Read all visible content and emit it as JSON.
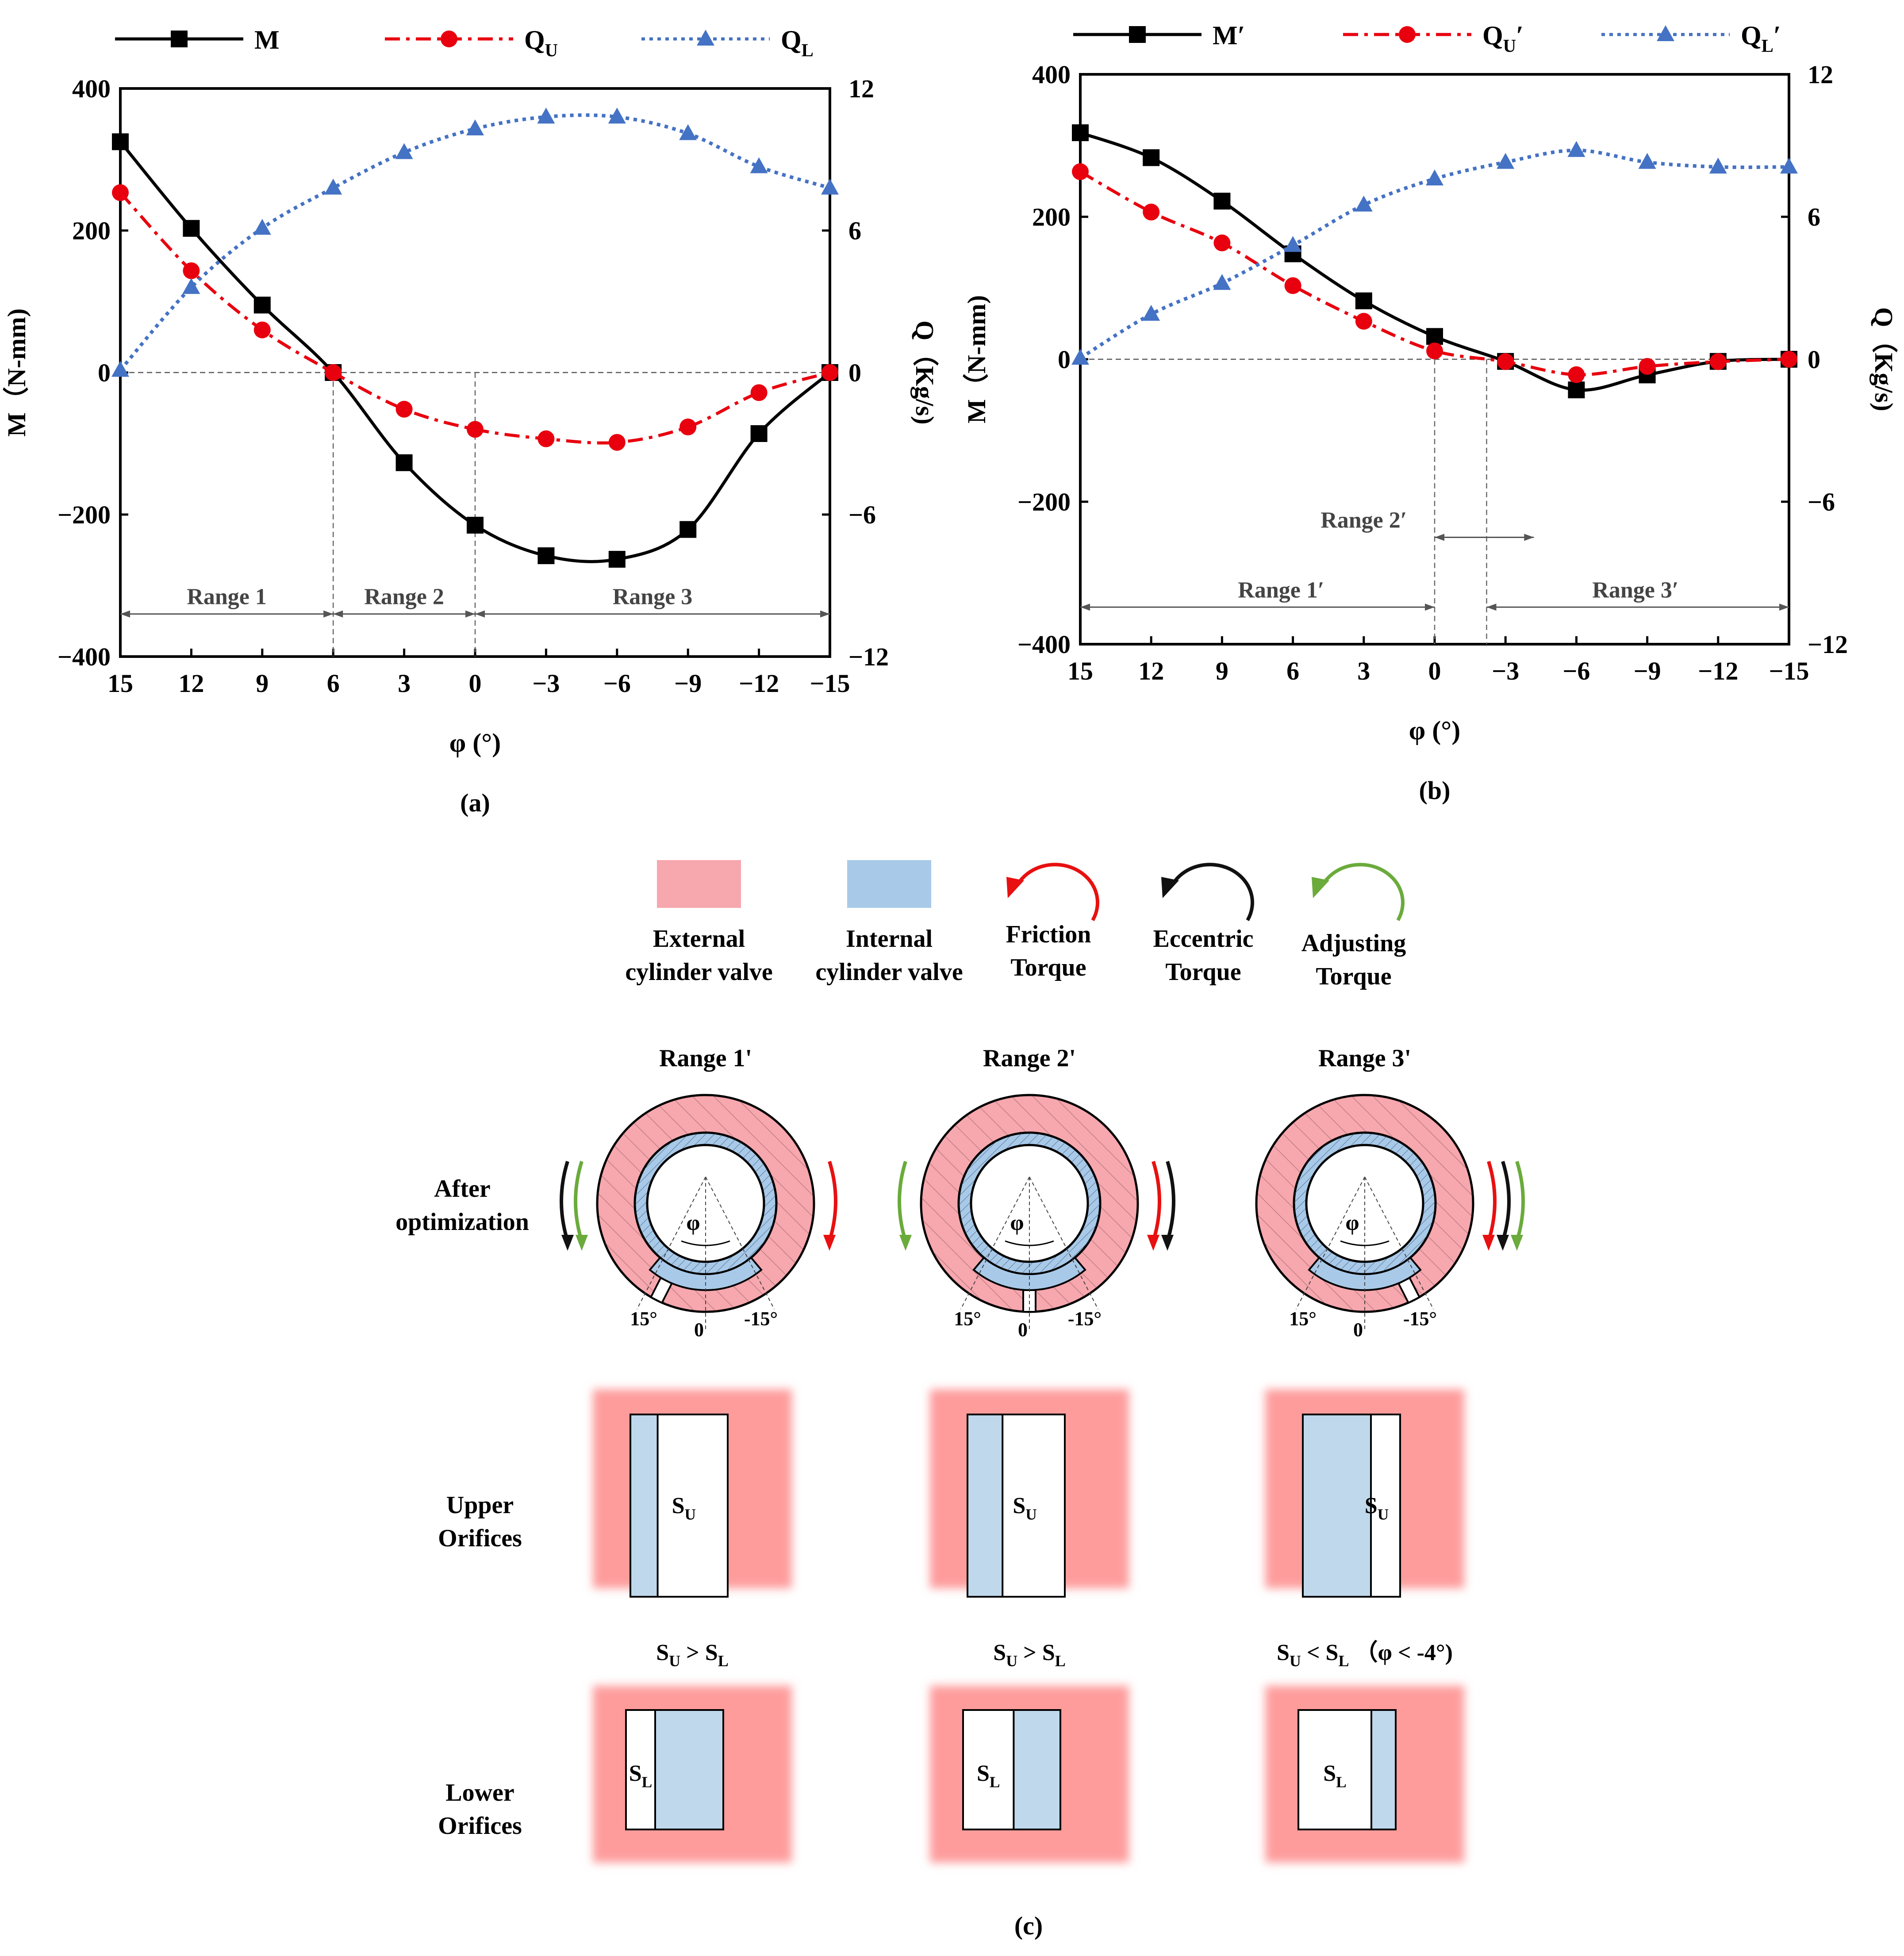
{
  "colors": {
    "M": "#000000",
    "QU": "#e8000e",
    "QL": "#4472c4",
    "external": "#f7a7ae",
    "internal": "#a9c9e8",
    "friction": "#e81010",
    "eccentric": "#111111",
    "adjusting": "#6aab3c",
    "pad": "#fe9c9c",
    "slot_blue": "#bfd8ec"
  },
  "chart_data": [
    {
      "type": "line",
      "panel": "(a)",
      "xlabel": "φ (°)",
      "ylabel_left": "M（N-mm)",
      "ylabel_right": "Q（Kg/s)",
      "x": [
        15,
        12,
        9,
        6,
        3,
        0,
        -3,
        -6,
        -9,
        -12,
        -15
      ],
      "xticks": [
        "15",
        "12",
        "9",
        "6",
        "3",
        "0",
        "−3",
        "−6",
        "−9",
        "−12",
        "−15"
      ],
      "xlim": [
        15,
        -15
      ],
      "ylim_left": [
        -400,
        400
      ],
      "ylim_right": [
        -12,
        12
      ],
      "yticks_left": [
        "400",
        "200",
        "0",
        "−200",
        "−400"
      ],
      "yticks_right": [
        "12",
        "6",
        "0",
        "−6",
        "−12"
      ],
      "series": [
        {
          "name": "M",
          "key": "M",
          "axis": "left",
          "marker": "square",
          "style": "solid",
          "values": [
            325,
            203,
            95,
            0,
            -127,
            -215,
            -258,
            -263,
            -221,
            -86,
            0
          ]
        },
        {
          "name": "Q",
          "sub": "U",
          "key": "QU",
          "axis": "right",
          "marker": "circle",
          "style": "dashdot",
          "values": [
            7.6,
            4.3,
            1.8,
            0.0,
            -1.55,
            -2.4,
            -2.8,
            -2.95,
            -2.3,
            -0.85,
            0.0
          ]
        },
        {
          "name": "Q",
          "sub": "L",
          "key": "QL",
          "axis": "right",
          "marker": "triangle",
          "style": "dot",
          "values": [
            0.1,
            3.6,
            6.1,
            7.8,
            9.3,
            10.3,
            10.8,
            10.8,
            10.1,
            8.7,
            7.8
          ]
        }
      ],
      "vlines": [
        6,
        0
      ],
      "ranges": [
        {
          "label": "Range 1",
          "from": 15,
          "to": 6
        },
        {
          "label": "Range 2",
          "from": 6,
          "to": 0
        },
        {
          "label": "Range 3",
          "from": 0,
          "to": -15
        }
      ],
      "ranges_level": -340
    },
    {
      "type": "line",
      "panel": "(b)",
      "xlabel": "φ (°)",
      "ylabel_left": "M（N-mm)",
      "ylabel_right": "Q（Kg/s)",
      "x": [
        15,
        12,
        9,
        6,
        3,
        0,
        -3,
        -6,
        -9,
        -12,
        -15
      ],
      "xticks": [
        "15",
        "12",
        "9",
        "6",
        "3",
        "0",
        "−3",
        "−6",
        "−9",
        "−12",
        "−15"
      ],
      "xlim": [
        15,
        -15
      ],
      "ylim_left": [
        -400,
        400
      ],
      "ylim_right": [
        -12,
        12
      ],
      "yticks_left": [
        "400",
        "200",
        "0",
        "−200",
        "−400"
      ],
      "yticks_right": [
        "12",
        "6",
        "0",
        "−6",
        "−12"
      ],
      "series": [
        {
          "name": "M′",
          "key": "M",
          "axis": "left",
          "marker": "square",
          "style": "solid",
          "values": [
            318,
            283,
            222,
            148,
            82,
            32,
            -3,
            -43,
            -22,
            -3,
            0
          ]
        },
        {
          "name": "Q",
          "sub": "U",
          "suffix": "′",
          "key": "QU",
          "axis": "right",
          "marker": "circle",
          "style": "dashdot",
          "values": [
            7.9,
            6.2,
            4.9,
            3.1,
            1.6,
            0.35,
            -0.1,
            -0.65,
            -0.3,
            -0.1,
            0.0
          ]
        },
        {
          "name": "Q",
          "sub": "L",
          "suffix": "′",
          "key": "QL",
          "axis": "right",
          "marker": "triangle",
          "style": "dot",
          "values": [
            0.05,
            1.9,
            3.2,
            4.8,
            6.5,
            7.6,
            8.3,
            8.8,
            8.3,
            8.1,
            8.1
          ]
        }
      ],
      "vlines": [
        0,
        -2.2
      ],
      "ranges": [
        {
          "label": "Range 1′",
          "from": 15,
          "to": 0,
          "level": -348,
          "label_at": 6.5
        },
        {
          "label": "Range 2′",
          "from": 0,
          "to": -4.2,
          "level": -250,
          "label_at": 3.0
        },
        {
          "label": "Range 3′",
          "from": -2.2,
          "to": -15,
          "level": -348,
          "label_at": -8.5
        }
      ]
    }
  ],
  "panel_labels": {
    "a": "(a)",
    "b": "(b)",
    "c": "(c)"
  },
  "legend_c": [
    {
      "kind": "swatch",
      "key": "external",
      "line1": "External",
      "line2": "cylinder valve"
    },
    {
      "kind": "swatch",
      "key": "internal",
      "line1": "Internal",
      "line2": "cylinder valve"
    },
    {
      "kind": "arrow",
      "key": "friction",
      "line1": "Friction",
      "line2": "Torque"
    },
    {
      "kind": "arrow",
      "key": "eccentric",
      "line1": "Eccentric",
      "line2": "Torque"
    },
    {
      "kind": "arrow",
      "key": "adjusting",
      "line1": "Adjusting",
      "line2": "Torque"
    }
  ],
  "row_labels": {
    "after_l1": "After",
    "after_l2": "optimization",
    "upper_l1": "Upper",
    "upper_l2": "Orifices",
    "lower_l1": "Lower",
    "lower_l2": "Orifices"
  },
  "diagrams": [
    {
      "title": "Range 1'",
      "deg_left": "15°",
      "deg_zero": "0",
      "deg_right": "-15°",
      "phi": "φ",
      "orifice_angle": 15,
      "left_arrows": [
        "adjusting",
        "eccentric"
      ],
      "right_arrows": [
        "friction"
      ],
      "upper_blue_fraction": 0.28,
      "lower_blue_fraction": 0.7,
      "upper_label": "S",
      "upper_sub": "U",
      "lower_label": "S",
      "lower_sub": "L"
    },
    {
      "title": "Range 2'",
      "deg_left": "15°",
      "deg_zero": "0",
      "deg_right": "-15°",
      "phi": "φ",
      "orifice_angle": 0,
      "left_arrows": [
        "adjusting"
      ],
      "right_arrows": [
        "friction",
        "eccentric"
      ],
      "upper_blue_fraction": 0.36,
      "lower_blue_fraction": 0.48,
      "upper_label": "S",
      "upper_sub": "U",
      "lower_label": "S",
      "lower_sub": "L"
    },
    {
      "title": "Range 3'",
      "deg_left": "15°",
      "deg_zero": "0",
      "deg_right": "-15°",
      "phi": "φ",
      "orifice_angle": -15,
      "left_arrows": [],
      "right_arrows": [
        "friction",
        "eccentric",
        "adjusting"
      ],
      "upper_blue_fraction": 0.7,
      "lower_blue_fraction": 0.25,
      "upper_label": "S",
      "upper_sub": "U",
      "lower_label": "S",
      "lower_sub": "L"
    }
  ],
  "comparisons": [
    {
      "s1": "S",
      "sub1": "U",
      "op": " > ",
      "s2": "S",
      "sub2": "L",
      "note": ""
    },
    {
      "s1": "S",
      "sub1": "U",
      "op": " > ",
      "s2": "S",
      "sub2": "L",
      "note": ""
    },
    {
      "s1": "S",
      "sub1": "U",
      "op": " < ",
      "s2": "S",
      "sub2": "L",
      "note": "（φ < -4°)"
    }
  ]
}
